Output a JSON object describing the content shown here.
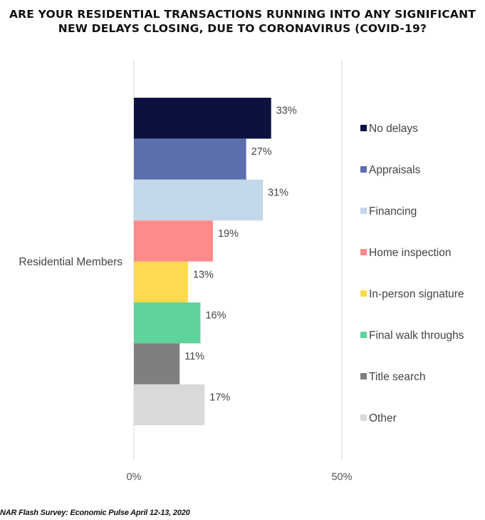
{
  "title_lines": [
    "ARE YOUR RESIDENTIAL TRANSACTIONS RUNNING INTO ANY SIGNIFICANT",
    "NEW DELAYS CLOSING, DUE TO CORONAVIRUS (COVID-19?"
  ],
  "source": "NAR Flash Survey: Economic Pulse April 12-13, 2020",
  "chart_data": {
    "type": "bar",
    "orientation": "horizontal",
    "title": "ARE YOUR RESIDENTIAL TRANSACTIONS RUNNING INTO ANY SIGNIFICANT NEW DELAYS CLOSING, DUE TO CORONAVIRUS (COVID-19?",
    "categories": [
      "Residential Members"
    ],
    "series": [
      {
        "name": "No delays",
        "values": [
          33
        ],
        "label": "33%",
        "color": "#0d1140"
      },
      {
        "name": "Appraisals",
        "values": [
          27
        ],
        "label": "27%",
        "color": "#5b6fad"
      },
      {
        "name": "Financing",
        "values": [
          31
        ],
        "label": "31%",
        "color": "#c3d8ea"
      },
      {
        "name": "Home inspection",
        "values": [
          19
        ],
        "label": "19%",
        "color": "#ff8a8a"
      },
      {
        "name": "In-person signature",
        "values": [
          13
        ],
        "label": "13%",
        "color": "#ffd94f"
      },
      {
        "name": "Final walk throughs",
        "values": [
          16
        ],
        "label": "16%",
        "color": "#5ed39a"
      },
      {
        "name": "Title search",
        "values": [
          11
        ],
        "label": "11%",
        "color": "#7f7f7f"
      },
      {
        "name": "Other",
        "values": [
          17
        ],
        "label": "17%",
        "color": "#d9d9d9"
      }
    ],
    "x_ticks": [
      "0%",
      "50%"
    ],
    "xlim": [
      0,
      50
    ],
    "grid": "vertical",
    "legend_position": "right"
  }
}
